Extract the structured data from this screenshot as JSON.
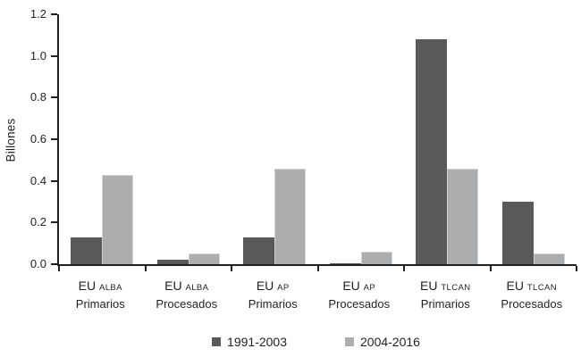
{
  "chart_data": {
    "type": "bar",
    "title": "",
    "xlabel": "",
    "ylabel": "Billones",
    "ylim": [
      0,
      1.2
    ],
    "ytick_labels": [
      "0.0",
      "0.2",
      "0.4",
      "0.6",
      "0.8",
      "1.0",
      "1.2"
    ],
    "grid": false,
    "legend_position": "bottom-center",
    "axis_color": "#231f20",
    "categories": [
      {
        "group": "EU",
        "bloc": "ALBA",
        "product": "Primarios"
      },
      {
        "group": "EU",
        "bloc": "ALBA",
        "product": "Procesados"
      },
      {
        "group": "EU",
        "bloc": "AP",
        "product": "Primarios"
      },
      {
        "group": "EU",
        "bloc": "AP",
        "product": "Procesados"
      },
      {
        "group": "EU",
        "bloc": "TLCAN",
        "product": "Primarios"
      },
      {
        "group": "EU",
        "bloc": "TLCAN",
        "product": "Procesados"
      }
    ],
    "series": [
      {
        "name": "1991-2003",
        "color": "#58595B",
        "values": [
          0.13,
          0.02,
          0.13,
          0.005,
          1.08,
          0.3
        ]
      },
      {
        "name": "2004-2016",
        "color": "#ABADAE",
        "values": [
          0.43,
          0.05,
          0.46,
          0.06,
          0.46,
          0.05
        ]
      }
    ]
  }
}
